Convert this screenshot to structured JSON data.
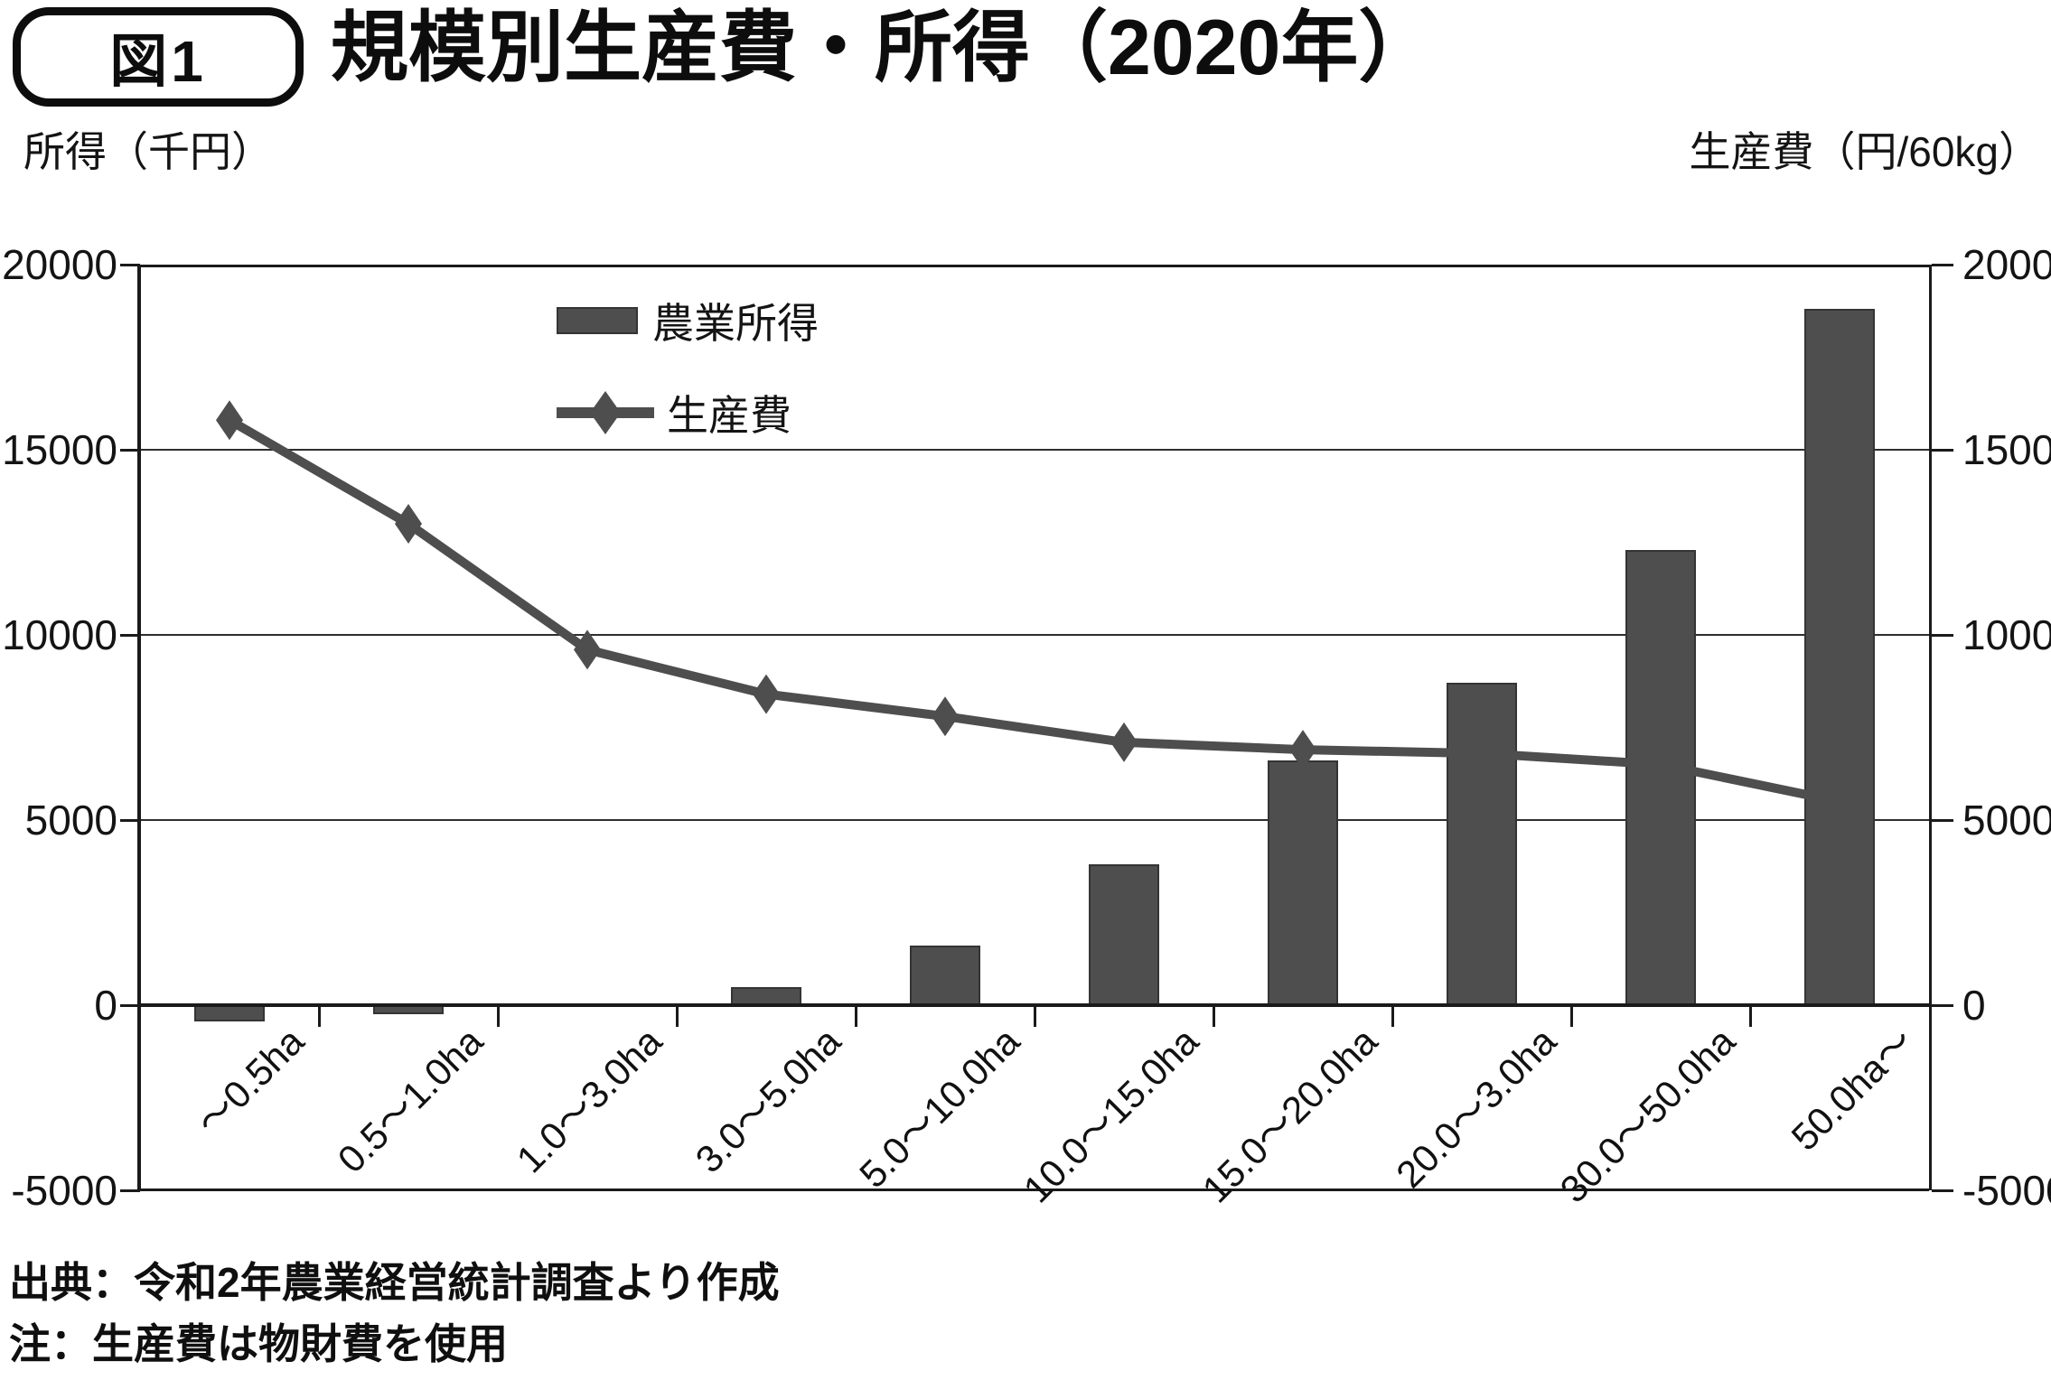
{
  "figure": {
    "badge": "図1",
    "title": "規模別生産費・所得（2020年）",
    "left_axis_label": "所得（千円）",
    "right_axis_label": "生産費（円/60kg）",
    "source": "出典：令和2年農業経営統計調査より作成",
    "note": "注：生産費は物財費を使用"
  },
  "chart_data": {
    "type": "bar+line combo",
    "categories": [
      "～0.5ha",
      "0.5～1.0ha",
      "1.0～3.0ha",
      "3.0～5.0ha",
      "5.0～10.0ha",
      "10.0～15.0ha",
      "15.0～20.0ha",
      "20.0～3.0ha",
      "30.0～50.0ha",
      "50.0ha～"
    ],
    "series": [
      {
        "name": "農業所得",
        "type": "bar",
        "axis": "left",
        "values": [
          -450,
          -250,
          50,
          500,
          1600,
          3800,
          6600,
          8700,
          12300,
          18800
        ]
      },
      {
        "name": "生産費",
        "type": "line",
        "marker": "diamond",
        "axis": "right",
        "values": [
          15800,
          13000,
          9600,
          8400,
          7800,
          7100,
          6900,
          6800,
          6500,
          5500
        ]
      }
    ],
    "left_axis": {
      "label": "所得（千円）",
      "min": -5000,
      "max": 20000,
      "tick_step": 5000
    },
    "right_axis": {
      "label": "生産費（円/60kg）",
      "min": -5000,
      "max": 20000,
      "tick_step": 5000
    },
    "y_tick_labels": [
      "20000",
      "15000",
      "10000",
      "5000",
      "0",
      "-5000"
    ],
    "grid": true,
    "legend_position": "inside-top-left",
    "colors": {
      "bar": "#4e4e4e",
      "line": "#4e4e4e",
      "grid": "#2e2e2e",
      "axis": "#1a1a1a",
      "text": "#111111"
    }
  }
}
